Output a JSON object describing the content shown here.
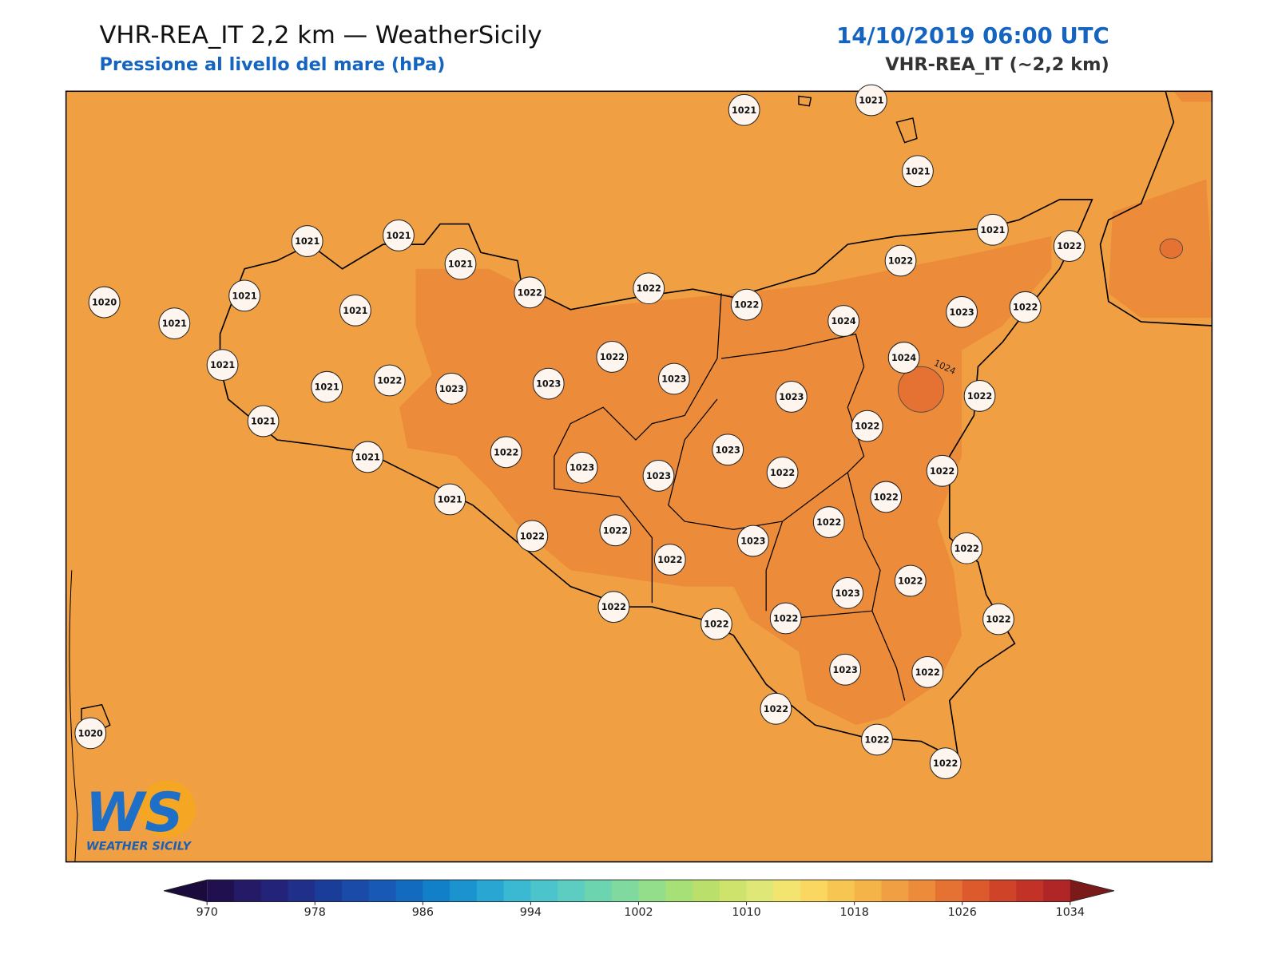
{
  "header": {
    "title": "VHR-REA_IT 2,2 km — WeatherSicily",
    "subtitle": "Pressione al livello del mare (hPa)",
    "date": "14/10/2019 06:00 UTC",
    "model": "VHR-REA_IT (~2,2 km)"
  },
  "map": {
    "contour_label": "1024",
    "stations": [
      1021,
      1021,
      1021,
      1021,
      1021,
      1021,
      1022,
      1022,
      1021,
      1022,
      1022,
      1020,
      1021,
      1021,
      1021,
      1022,
      1024,
      1023,
      1022,
      1021,
      1021,
      1022,
      1023,
      1023,
      1022,
      1023,
      1024,
      1023,
      1022,
      1021,
      1021,
      1022,
      1023,
      1023,
      1023,
      1022,
      1022,
      1022,
      1021,
      1022,
      1022,
      1022,
      1022,
      1023,
      1022,
      1022,
      1023,
      1022,
      1022,
      1022,
      1022,
      1022,
      1023,
      1022,
      1022,
      1022,
      1022,
      1020
    ]
  },
  "logo": {
    "mark": "WS",
    "name": "WEATHER SICILY"
  },
  "colorbar": {
    "lim": [
      970,
      1034
    ],
    "ticks": [
      970,
      978,
      986,
      994,
      1002,
      1010,
      1018,
      1026,
      1034
    ]
  }
}
